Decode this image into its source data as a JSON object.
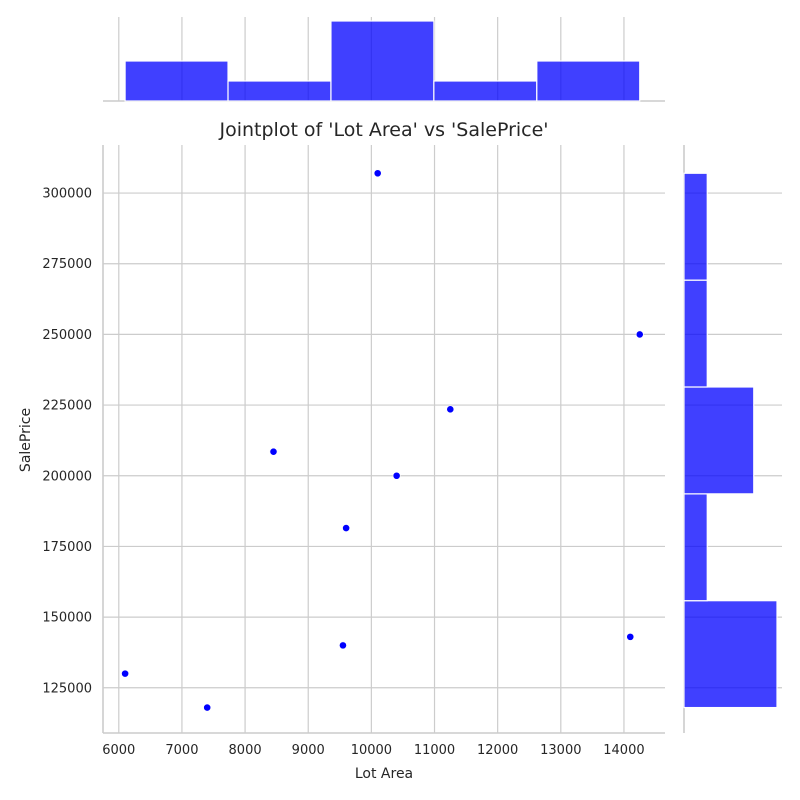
{
  "chart_data": {
    "type": "scatter",
    "subtype": "jointplot",
    "title": "Jointplot of 'Lot Area' vs 'SalePrice'",
    "xlabel": "Lot Area",
    "ylabel": "SalePrice",
    "xlim": [
      5750,
      14650
    ],
    "ylim": [
      109000,
      317000
    ],
    "x_ticks": [
      6000,
      7000,
      8000,
      9000,
      10000,
      11000,
      12000,
      13000,
      14000
    ],
    "y_ticks": [
      125000,
      150000,
      175000,
      200000,
      225000,
      250000,
      275000,
      300000
    ],
    "x_tick_labels": [
      "6000",
      "7000",
      "8000",
      "9000",
      "10000",
      "11000",
      "12000",
      "13000",
      "14000"
    ],
    "y_tick_labels": [
      "125000",
      "150000",
      "175000",
      "200000",
      "225000",
      "250000",
      "275000",
      "300000"
    ],
    "grid": true,
    "point_color": "#0000ff",
    "hist_color": "#0000ff",
    "points": [
      {
        "x": 6100,
        "y": 130000
      },
      {
        "x": 7400,
        "y": 118000
      },
      {
        "x": 8450,
        "y": 208500
      },
      {
        "x": 9550,
        "y": 140000
      },
      {
        "x": 9600,
        "y": 181500
      },
      {
        "x": 10100,
        "y": 307000
      },
      {
        "x": 10400,
        "y": 200000
      },
      {
        "x": 11250,
        "y": 223500
      },
      {
        "x": 14100,
        "y": 143000
      },
      {
        "x": 14250,
        "y": 250000
      }
    ],
    "marginal_x": {
      "bin_edges": [
        6100,
        7730,
        9360,
        10990,
        12620,
        14250
      ],
      "counts": [
        2,
        1,
        4,
        1,
        2
      ]
    },
    "marginal_y": {
      "bin_edges": [
        118000,
        155800,
        193600,
        231400,
        269200,
        307000
      ],
      "counts": [
        4,
        1,
        3,
        1,
        1
      ]
    }
  }
}
